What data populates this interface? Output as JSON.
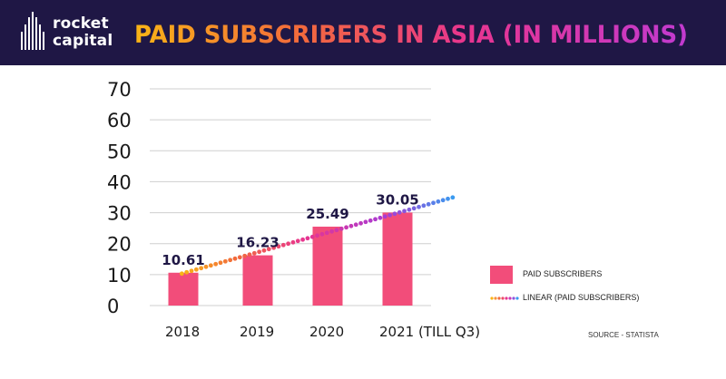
{
  "brand": {
    "line1": "rocket",
    "line2": "capital"
  },
  "title": "PAID SUBSCRIBERS IN ASIA (IN MILLIONS)",
  "source": "SOURCE -  STATISTA",
  "colors": {
    "header_bg": "#1f1745",
    "bar": "#f24d7a",
    "gradient": [
      "#f9b416",
      "#f26a3c",
      "#e8358f",
      "#a93bd4",
      "#3a9af0"
    ]
  },
  "legend": {
    "bar_label": "PAID SUBSCRIBERS",
    "line_label": "LINEAR (PAID SUBSCRIBERS)"
  },
  "chart_data": {
    "type": "bar",
    "categories": [
      "2018",
      "2019",
      "2020",
      "2021 (TILL Q3)"
    ],
    "series": [
      {
        "name": "PAID SUBSCRIBERS",
        "values": [
          10.61,
          16.23,
          25.49,
          30.05
        ]
      }
    ],
    "data_labels": [
      "10.61",
      "16.23",
      "25.49",
      "30.05"
    ],
    "trendline": {
      "name": "LINEAR (PAID SUBSCRIBERS)",
      "type": "linear",
      "style": "dotted-gradient"
    },
    "ylim": [
      0,
      70
    ],
    "yticks": [
      "0",
      "10",
      "20",
      "30",
      "40",
      "50",
      "60",
      "70"
    ],
    "grid": true,
    "legend_position": "right"
  }
}
